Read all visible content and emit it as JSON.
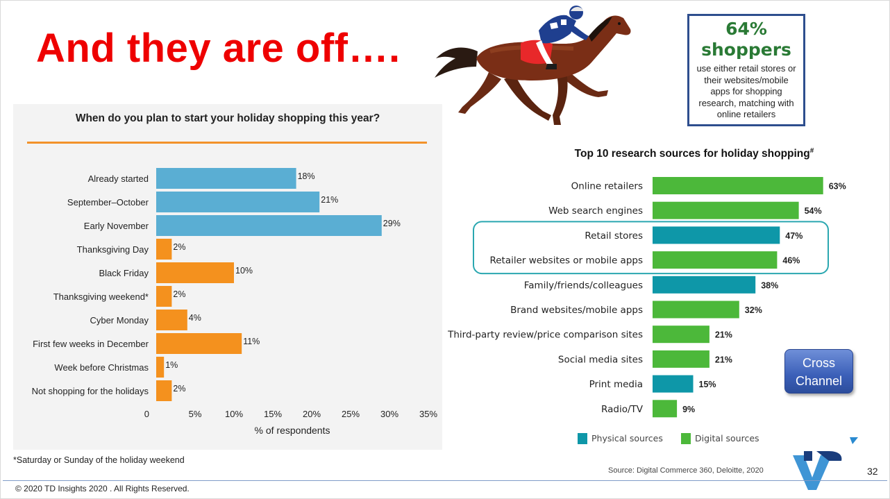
{
  "slide": {
    "title": "And they are off….",
    "footnote": "*Saturday or Sunday of the holiday weekend",
    "source": "Source: Digital Commerce 360, Deloitte, 2020",
    "page_number": "32",
    "copyright": "© 2020 TD Insights 2020 . All Rights Reserved.",
    "cross_channel_button": [
      "Cross",
      "Channel"
    ]
  },
  "stat_box": {
    "big_lines": [
      "64%",
      "shoppers"
    ],
    "small_lines": [
      "use either retail stores or",
      "their websites/mobile",
      "apps for shopping",
      "research, matching with",
      "online retailers"
    ],
    "border_color": "#2e4e8e",
    "text_color": "#2a7a35"
  },
  "chart_data": [
    {
      "type": "bar",
      "orientation": "horizontal",
      "title": "When do you plan to start your holiday shopping this year?",
      "xlabel": "% of respondents",
      "xlim": [
        0,
        35
      ],
      "xticks": [
        "0",
        "5%",
        "10%",
        "15%",
        "20%",
        "25%",
        "30%",
        "35%"
      ],
      "categories": [
        "Already started",
        "September–October",
        "Early November",
        "Thanksgiving Day",
        "Black Friday",
        "Thanksgiving weekend*",
        "Cyber Monday",
        "First few weeks in December",
        "Week before Christmas",
        "Not shopping for the holidays"
      ],
      "values": [
        18,
        21,
        29,
        2,
        10,
        2,
        4,
        11,
        1,
        2
      ],
      "value_labels": [
        "18%",
        "21%",
        "29%",
        "2%",
        "10%",
        "2%",
        "4%",
        "11%",
        "1%",
        "2%"
      ],
      "bar_colors": [
        "#5aaed3",
        "#5aaed3",
        "#5aaed3",
        "#f4911e",
        "#f4911e",
        "#f4911e",
        "#f4911e",
        "#f4911e",
        "#f4911e",
        "#f4911e"
      ],
      "grid": false
    },
    {
      "type": "bar",
      "orientation": "horizontal",
      "title": "Top 10 research sources for holiday shopping",
      "title_mark": "#",
      "categories": [
        "Online retailers",
        "Web search engines",
        "Retail stores",
        "Retailer websites or mobile apps",
        "Family/friends/colleagues",
        "Brand websites/mobile apps",
        "Third-party review/price comparison sites",
        "Social media sites",
        "Print media",
        "Radio/TV"
      ],
      "values": [
        63,
        54,
        47,
        46,
        38,
        32,
        21,
        21,
        15,
        9
      ],
      "value_labels": [
        "63%",
        "54%",
        "47%",
        "46%",
        "38%",
        "32%",
        "21%",
        "21%",
        "15%",
        "9%"
      ],
      "source_type": [
        "Digital",
        "Digital",
        "Physical",
        "Digital",
        "Physical",
        "Digital",
        "Digital",
        "Digital",
        "Physical",
        "Digital"
      ],
      "legend": [
        {
          "name": "Physical sources",
          "color": "#0e97a8"
        },
        {
          "name": "Digital sources",
          "color": "#4cb83a"
        }
      ],
      "legend_placement": "bottom",
      "highlighted_categories": [
        "Retail stores",
        "Retailer websites or mobile apps"
      ],
      "highlight_color": "#2aa7b0",
      "grid": false
    }
  ]
}
